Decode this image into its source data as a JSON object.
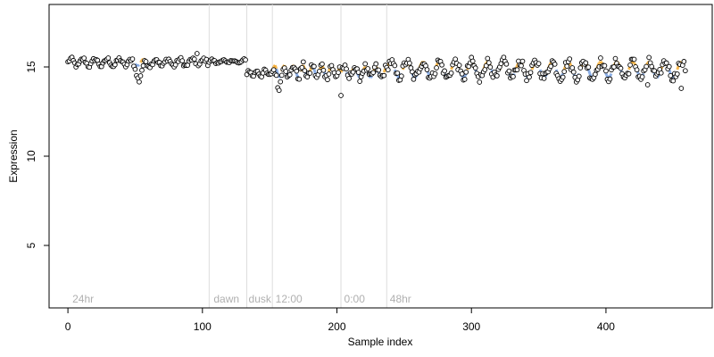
{
  "chart_data": {
    "type": "scatter",
    "title": "",
    "xlabel": "Sample index",
    "ylabel": "Expression",
    "xlim": [
      -14,
      479
    ],
    "ylim": [
      1.5,
      18.5
    ],
    "x_ticks": [
      0,
      100,
      200,
      300,
      400
    ],
    "x_tick_labels": [
      "0",
      "100",
      "200",
      "300",
      "400"
    ],
    "y_ticks": [
      5,
      10,
      15
    ],
    "y_tick_labels": [
      "5",
      "10",
      "15"
    ],
    "grid": false,
    "legend": null,
    "phase_boundaries": [
      {
        "x": 105,
        "label": ""
      },
      {
        "x": 133,
        "label": ""
      },
      {
        "x": 152,
        "label": ""
      },
      {
        "x": 203,
        "label": ""
      },
      {
        "x": 237,
        "label": ""
      }
    ],
    "phase_labels": [
      {
        "x": 2,
        "label": "24hr"
      },
      {
        "x": 107,
        "label": "dawn"
      },
      {
        "x": 133,
        "label": "dusk"
      },
      {
        "x": 153,
        "label": "12:00"
      },
      {
        "x": 204,
        "label": "0:00"
      },
      {
        "x": 238,
        "label": "48hr"
      }
    ],
    "colors": {
      "point_fill": "#ffffff",
      "point_stroke": "#000000",
      "highlight_high": "#f5a623",
      "highlight_low": "#6f9be0",
      "boundary": "#dcdcdc",
      "phase_text": "#b0b0b0"
    },
    "series": [
      {
        "segments": [
          {
            "x0": 0,
            "x1": 105,
            "base": 15.25,
            "amp": 0.2,
            "period": 9,
            "noise": 0.12,
            "dip": {
              "from": 48,
              "to": 58,
              "depth": 0.9
            }
          },
          {
            "x0": 105,
            "x1": 133,
            "base": 15.3,
            "amp": 0.1,
            "period": 8,
            "noise": 0.07
          },
          {
            "x0": 133,
            "x1": 152,
            "base": 14.65,
            "amp": 0.15,
            "period": 6,
            "noise": 0.1
          },
          {
            "x0": 152,
            "x1": 203,
            "base": 14.75,
            "amp": 0.35,
            "period": 7,
            "noise": 0.2,
            "dip": {
              "from": 152,
              "to": 160,
              "depth": 0.7
            }
          },
          {
            "x0": 203,
            "x1": 237,
            "base": 14.7,
            "amp": 0.3,
            "period": 8,
            "noise": 0.22
          },
          {
            "x0": 237,
            "x1": 460,
            "base": 14.85,
            "amp": 0.45,
            "period": 12,
            "noise": 0.25
          }
        ],
        "outliers": [
          {
            "x": 203,
            "y": 13.4
          },
          {
            "x": 306,
            "y": 14.15
          },
          {
            "x": 456,
            "y": 13.8
          },
          {
            "x": 431,
            "y": 14.0
          },
          {
            "x": 96,
            "y": 15.75
          }
        ]
      }
    ]
  }
}
